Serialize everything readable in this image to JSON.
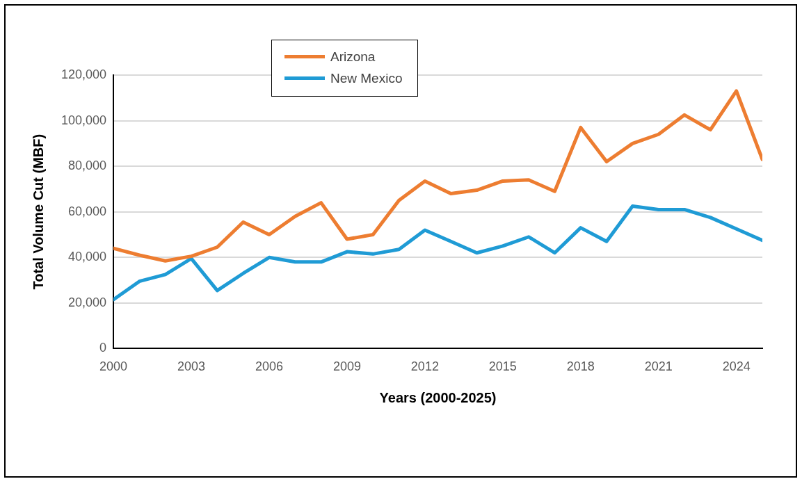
{
  "chart_data": {
    "type": "line",
    "xlabel": "Years (2000-2025)",
    "ylabel": "Total Volume Cut (MBF)",
    "x": [
      2000,
      2001,
      2002,
      2003,
      2004,
      2005,
      2006,
      2007,
      2008,
      2009,
      2010,
      2011,
      2012,
      2013,
      2014,
      2015,
      2016,
      2017,
      2018,
      2019,
      2020,
      2021,
      2022,
      2023,
      2024,
      2025
    ],
    "series": [
      {
        "name": "Arizona",
        "color": "#ed7d31",
        "values": [
          44000,
          41000,
          38500,
          40500,
          44500,
          55500,
          50000,
          58000,
          64000,
          48000,
          50000,
          65000,
          73500,
          68000,
          69500,
          73500,
          74000,
          69000,
          97000,
          82000,
          90000,
          94000,
          102500,
          96000,
          113000,
          83000
        ]
      },
      {
        "name": "New Mexico",
        "color": "#1f9bd5",
        "values": [
          21500,
          29500,
          32500,
          39500,
          25500,
          33000,
          40000,
          38000,
          38000,
          42500,
          41500,
          43500,
          52000,
          47000,
          42000,
          45000,
          49000,
          42000,
          53000,
          47000,
          62500,
          61000,
          61000,
          57500,
          52500,
          47500
        ]
      }
    ],
    "xlim": [
      2000,
      2025
    ],
    "xticks": [
      2000,
      2003,
      2006,
      2009,
      2012,
      2015,
      2018,
      2021,
      2024
    ],
    "ylim": [
      0,
      120000
    ],
    "yticks": [
      {
        "value": 0,
        "label": "0"
      },
      {
        "value": 20000,
        "label": "20,000"
      },
      {
        "value": 40000,
        "label": "40,000"
      },
      {
        "value": 60000,
        "label": "60,000"
      },
      {
        "value": 80000,
        "label": "80,000"
      },
      {
        "value": 100000,
        "label": "100,000"
      },
      {
        "value": 120000,
        "label": "120,000"
      }
    ],
    "grid": "y",
    "legend": "top left",
    "marker": "none",
    "line_style": "solid"
  }
}
